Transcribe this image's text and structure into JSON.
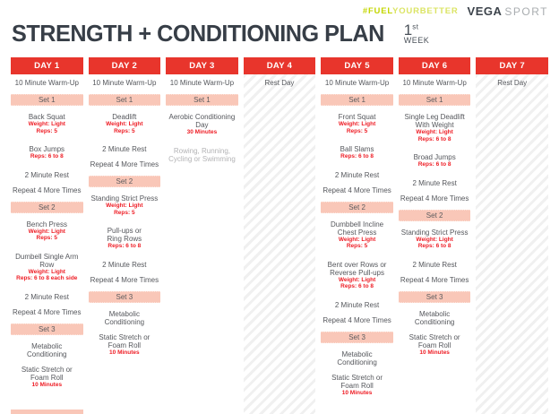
{
  "topbar": {
    "hashtag_bold": "#FUEL",
    "hashtag_rest": "YOURBETTER",
    "brand": "VEGA",
    "brand_sub": "SPORT"
  },
  "title": {
    "text": "STRENGTH + CONDITIONING PLAN",
    "week_number": "1",
    "week_suffix": "st",
    "week_word": "WEEK"
  },
  "colors": {
    "day_header_red": "#e8352c",
    "accent_red": "#ee1c24",
    "set_bar_pink": "#f9c7b8",
    "body_text_gray": "#55575c",
    "muted_text_gray": "#b3b3b5",
    "title_charcoal": "#373e47",
    "hashtag_lime": "#c3d600",
    "hashtag_lime_light": "#dbe464",
    "rest_stripe_gray": "#f0f0f0"
  },
  "days": [
    {
      "label": "DAY 1",
      "rest": false,
      "items": [
        {
          "t": "text",
          "lines": [
            "10 Minute Warm-Up"
          ]
        },
        {
          "t": "set",
          "text": "Set 1"
        },
        {
          "t": "ex",
          "lines": [
            "Back Squat"
          ],
          "details": [
            "Weight: Light",
            "Reps: 5"
          ]
        },
        {
          "t": "ex",
          "lines": [
            "Box Jumps"
          ],
          "details": [
            "Reps: 6 to 8"
          ]
        },
        {
          "t": "text",
          "lines": [
            "2 Minute Rest"
          ]
        },
        {
          "t": "text",
          "lines": [
            "Repeat 4 More Times"
          ]
        },
        {
          "t": "set",
          "text": "Set 2"
        },
        {
          "t": "ex",
          "lines": [
            "Bench Press"
          ],
          "details": [
            "Weight: Light",
            "Reps: 5"
          ]
        },
        {
          "t": "ex",
          "lines": [
            "Dumbell Single Arm",
            "Row"
          ],
          "details": [
            "Weight: Light",
            "Reps: 6 to 8 each side"
          ]
        },
        {
          "t": "text",
          "lines": [
            "2 Minute Rest"
          ]
        },
        {
          "t": "text",
          "lines": [
            "Repeat 4 More Times"
          ]
        },
        {
          "t": "set",
          "text": "Set 3"
        },
        {
          "t": "text",
          "lines": [
            "Metabolic",
            "Conditioning"
          ]
        },
        {
          "t": "ex",
          "lines": [
            "Static Stretch or",
            "Foam Roll"
          ],
          "details": [
            "10 Minutes"
          ]
        },
        {
          "t": "setcut",
          "text": ""
        }
      ]
    },
    {
      "label": "DAY 2",
      "rest": false,
      "items": [
        {
          "t": "text",
          "lines": [
            "10 Minute Warm-Up"
          ]
        },
        {
          "t": "set",
          "text": "Set 1"
        },
        {
          "t": "ex",
          "lines": [
            "Deadlift"
          ],
          "details": [
            "Weight: Light",
            "Reps: 5"
          ]
        },
        {
          "t": "text",
          "lines": [
            "2 Minute Rest"
          ]
        },
        {
          "t": "text",
          "lines": [
            "Repeat 4 More Times"
          ]
        },
        {
          "t": "set",
          "text": "Set 2"
        },
        {
          "t": "ex",
          "lines": [
            "Standing Strict Press"
          ],
          "details": [
            "Weight: Light",
            "Reps: 5"
          ]
        },
        {
          "t": "ex",
          "lines": [
            "Pull-ups or",
            "Ring Rows"
          ],
          "details": [
            "Reps: 6 to 8"
          ]
        },
        {
          "t": "text",
          "lines": [
            "2 Minute Rest"
          ]
        },
        {
          "t": "text",
          "lines": [
            "Repeat 4 More Times"
          ]
        },
        {
          "t": "set",
          "text": "Set 3"
        },
        {
          "t": "text",
          "lines": [
            "Metabolic",
            "Conditioning"
          ]
        },
        {
          "t": "ex",
          "lines": [
            "Static Stretch or",
            "Foam Roll"
          ],
          "details": [
            "10 Minutes"
          ]
        }
      ]
    },
    {
      "label": "DAY 3",
      "rest": false,
      "items": [
        {
          "t": "text",
          "lines": [
            "10 Minute Warm-Up"
          ]
        },
        {
          "t": "set",
          "text": "Set 1"
        },
        {
          "t": "ex",
          "lines": [
            "Aerobic Conditioning",
            "Day"
          ],
          "details": [
            "30 Minutes"
          ]
        },
        {
          "t": "muted",
          "lines": [
            "Rowing, Running,",
            "Cycling or Swimming"
          ]
        }
      ]
    },
    {
      "label": "DAY 4",
      "rest": true,
      "items": [
        {
          "t": "text",
          "lines": [
            "Rest Day"
          ]
        }
      ]
    },
    {
      "label": "DAY 5",
      "rest": false,
      "items": [
        {
          "t": "text",
          "lines": [
            "10 Minute Warm-Up"
          ]
        },
        {
          "t": "set",
          "text": "Set 1"
        },
        {
          "t": "ex",
          "lines": [
            "Front Squat"
          ],
          "details": [
            "Weight: Light",
            "Reps: 5"
          ]
        },
        {
          "t": "ex",
          "lines": [
            "Ball Slams"
          ],
          "details": [
            "Reps: 6 to 8"
          ]
        },
        {
          "t": "text",
          "lines": [
            "2 Minute Rest"
          ]
        },
        {
          "t": "text",
          "lines": [
            "Repeat 4 More Times"
          ]
        },
        {
          "t": "set",
          "text": "Set 2"
        },
        {
          "t": "ex",
          "lines": [
            "Dumbbell Incline",
            "Chest Press"
          ],
          "details": [
            "Weight: Light",
            "Reps: 5"
          ]
        },
        {
          "t": "ex",
          "lines": [
            "Bent over Rows or",
            "Reverse Pull-ups"
          ],
          "details": [
            "Weight: Light",
            "Reps: 6 to 8"
          ]
        },
        {
          "t": "text",
          "lines": [
            "2 Minute Rest"
          ]
        },
        {
          "t": "text",
          "lines": [
            "Repeat 4 More Times"
          ]
        },
        {
          "t": "set",
          "text": "Set 3"
        },
        {
          "t": "text",
          "lines": [
            "Metabolic",
            "Conditioning"
          ]
        },
        {
          "t": "ex",
          "lines": [
            "Static Stretch or",
            "Foam Roll"
          ],
          "details": [
            "10 Minutes"
          ]
        }
      ]
    },
    {
      "label": "DAY 6",
      "rest": false,
      "items": [
        {
          "t": "text",
          "lines": [
            "10 Minute Warm-Up"
          ]
        },
        {
          "t": "set",
          "text": "Set 1"
        },
        {
          "t": "ex",
          "lines": [
            "Single Leg Deadlift",
            "With Weight"
          ],
          "details": [
            "Weight: Light",
            "Reps: 6 to 8"
          ]
        },
        {
          "t": "ex",
          "lines": [
            "Broad Jumps"
          ],
          "details": [
            "Reps: 6 to 8"
          ]
        },
        {
          "t": "text",
          "lines": [
            "2 Minute Rest"
          ]
        },
        {
          "t": "text",
          "lines": [
            "Repeat 4 More Times"
          ]
        },
        {
          "t": "set",
          "text": "Set 2"
        },
        {
          "t": "ex",
          "lines": [
            "Standing Strict Press"
          ],
          "details": [
            "Weight: Light",
            "Reps: 6 to 8"
          ]
        },
        {
          "t": "text",
          "lines": [
            "2 Minute Rest"
          ]
        },
        {
          "t": "text",
          "lines": [
            "Repeat 4 More Times"
          ]
        },
        {
          "t": "set",
          "text": "Set 3"
        },
        {
          "t": "text",
          "lines": [
            "Metabolic",
            "Conditioning"
          ]
        },
        {
          "t": "ex",
          "lines": [
            "Static Stretch or",
            "Foam Roll"
          ],
          "details": [
            "10 Minutes"
          ]
        }
      ]
    },
    {
      "label": "DAY 7",
      "rest": true,
      "items": [
        {
          "t": "text",
          "lines": [
            "Rest Day"
          ]
        }
      ]
    }
  ]
}
